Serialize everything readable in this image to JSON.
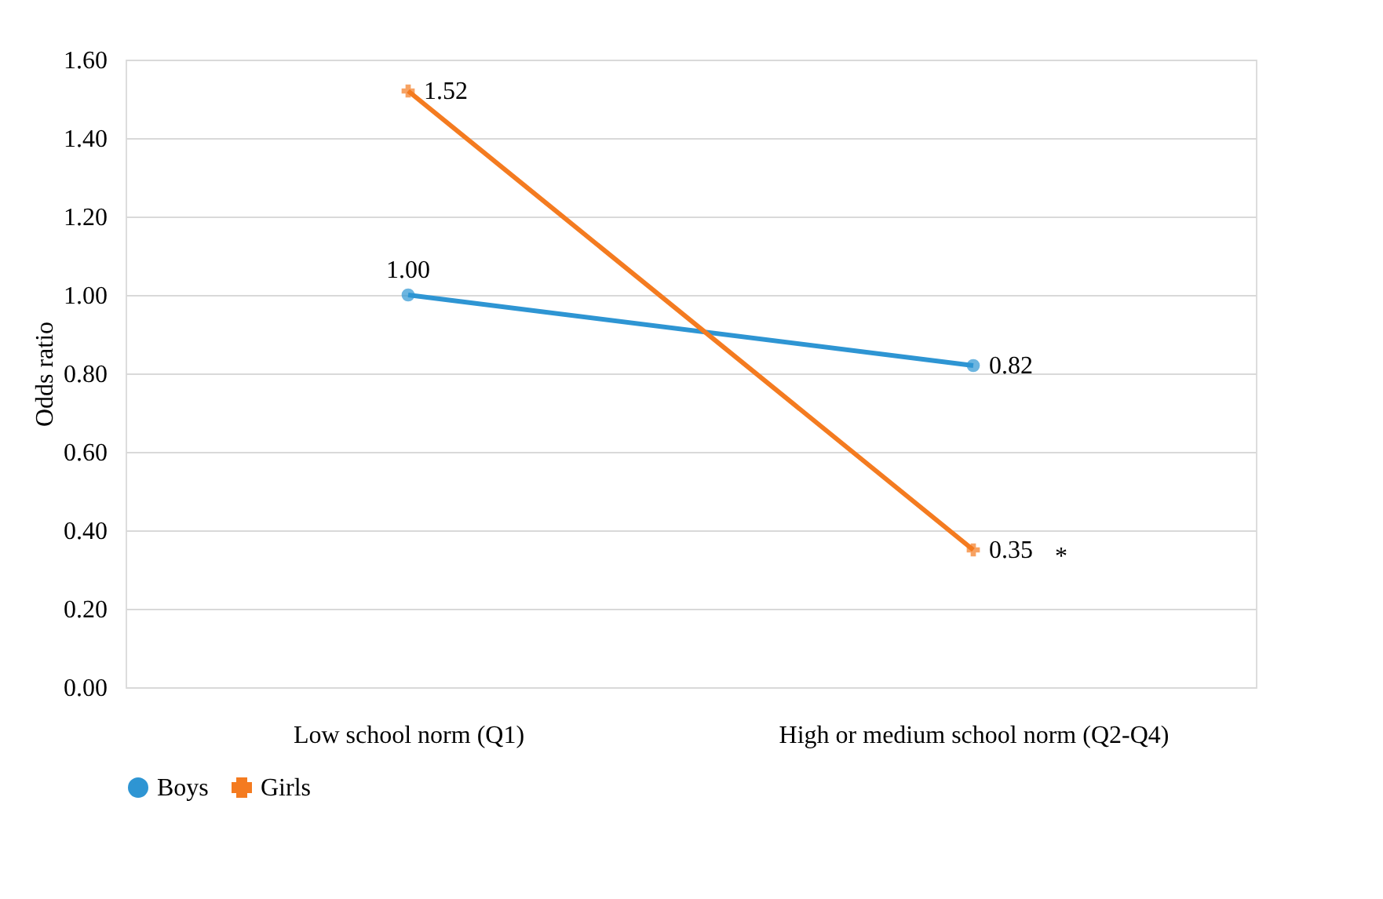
{
  "chart_data": {
    "type": "line",
    "ylabel": "Odds ratio",
    "categories": [
      "Low school norm (Q1)",
      "High or medium school norm (Q2-Q4)"
    ],
    "series": [
      {
        "name": "Boys",
        "color": "#2e95d3",
        "marker": "circle",
        "values": [
          1.0,
          0.82
        ],
        "value_labels": [
          "1.00",
          "0.82"
        ]
      },
      {
        "name": "Girls",
        "color": "#f47b20",
        "marker": "cross",
        "values": [
          1.52,
          0.35
        ],
        "value_labels": [
          "1.52",
          "0.35"
        ]
      }
    ],
    "ylim": [
      0,
      1.6
    ],
    "yticks": [
      {
        "value": 0,
        "label": "0.00"
      },
      {
        "value": 0.2,
        "label": "0.20"
      },
      {
        "value": 0.4,
        "label": "0.40"
      },
      {
        "value": 0.6,
        "label": "0.60"
      },
      {
        "value": 0.8,
        "label": "0.80"
      },
      {
        "value": 1.0,
        "label": "1.00"
      },
      {
        "value": 1.2,
        "label": "1.20"
      },
      {
        "value": 1.4,
        "label": "1.40"
      },
      {
        "value": 1.6,
        "label": "1.60"
      }
    ],
    "annotations": [
      "*"
    ],
    "grid": "y",
    "legend": "bottom",
    "line_style": "solid"
  }
}
